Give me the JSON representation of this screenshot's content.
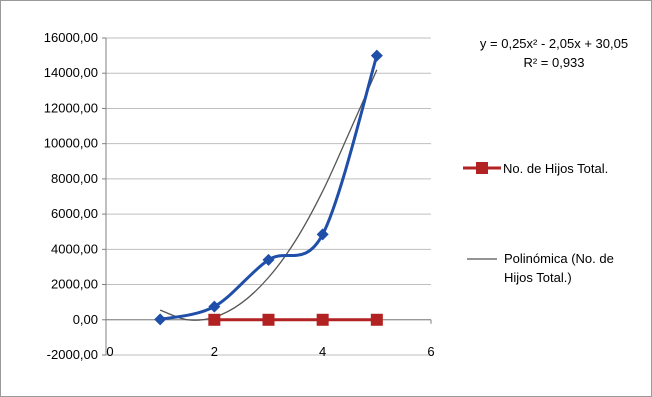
{
  "chart_data": {
    "type": "scatter",
    "ylim": [
      -2000,
      16000
    ],
    "xlim": [
      0,
      6
    ],
    "y_ticks": [
      "16000,00",
      "14000,00",
      "12000,00",
      "10000,00",
      "8000,00",
      "6000,00",
      "4000,00",
      "2000,00",
      "0,00",
      "-2000,00"
    ],
    "y_tick_values": [
      16000,
      14000,
      12000,
      10000,
      8000,
      6000,
      4000,
      2000,
      0,
      -2000
    ],
    "x_ticks": [
      "0",
      "2",
      "4",
      "6"
    ],
    "x_tick_values": [
      0,
      2,
      4,
      6
    ],
    "grid": "horizontal",
    "legend_position": "right",
    "series": [
      {
        "color": "#1f4fa8",
        "marker": "diamond",
        "line": "smooth",
        "x": [
          1,
          2,
          3,
          4,
          5
        ],
        "y": [
          20,
          750,
          3400,
          4850,
          15000
        ]
      },
      {
        "name": "No. de Hijos Total.",
        "color": "#b22222",
        "marker": "square",
        "line": "straight",
        "x": [
          2,
          3,
          4,
          5
        ],
        "y": [
          0,
          0,
          0,
          0
        ]
      }
    ],
    "trendline": {
      "name": "Polinómica (No. de Hijos Total.)",
      "color": "#555555",
      "x": [
        1.0,
        1.5,
        2.0,
        2.5,
        3.0,
        3.5,
        4.0,
        4.5,
        5.0
      ],
      "y": [
        550,
        0,
        150,
        950,
        2400,
        4500,
        7300,
        10700,
        14200
      ]
    },
    "equation": [
      "y = 0,25x² - 2,05x + 30,05",
      "R² = 0,933"
    ],
    "legend": [
      "No. de Hijos Total.",
      "Polinómica (No. de",
      "Hijos Total.)"
    ]
  }
}
